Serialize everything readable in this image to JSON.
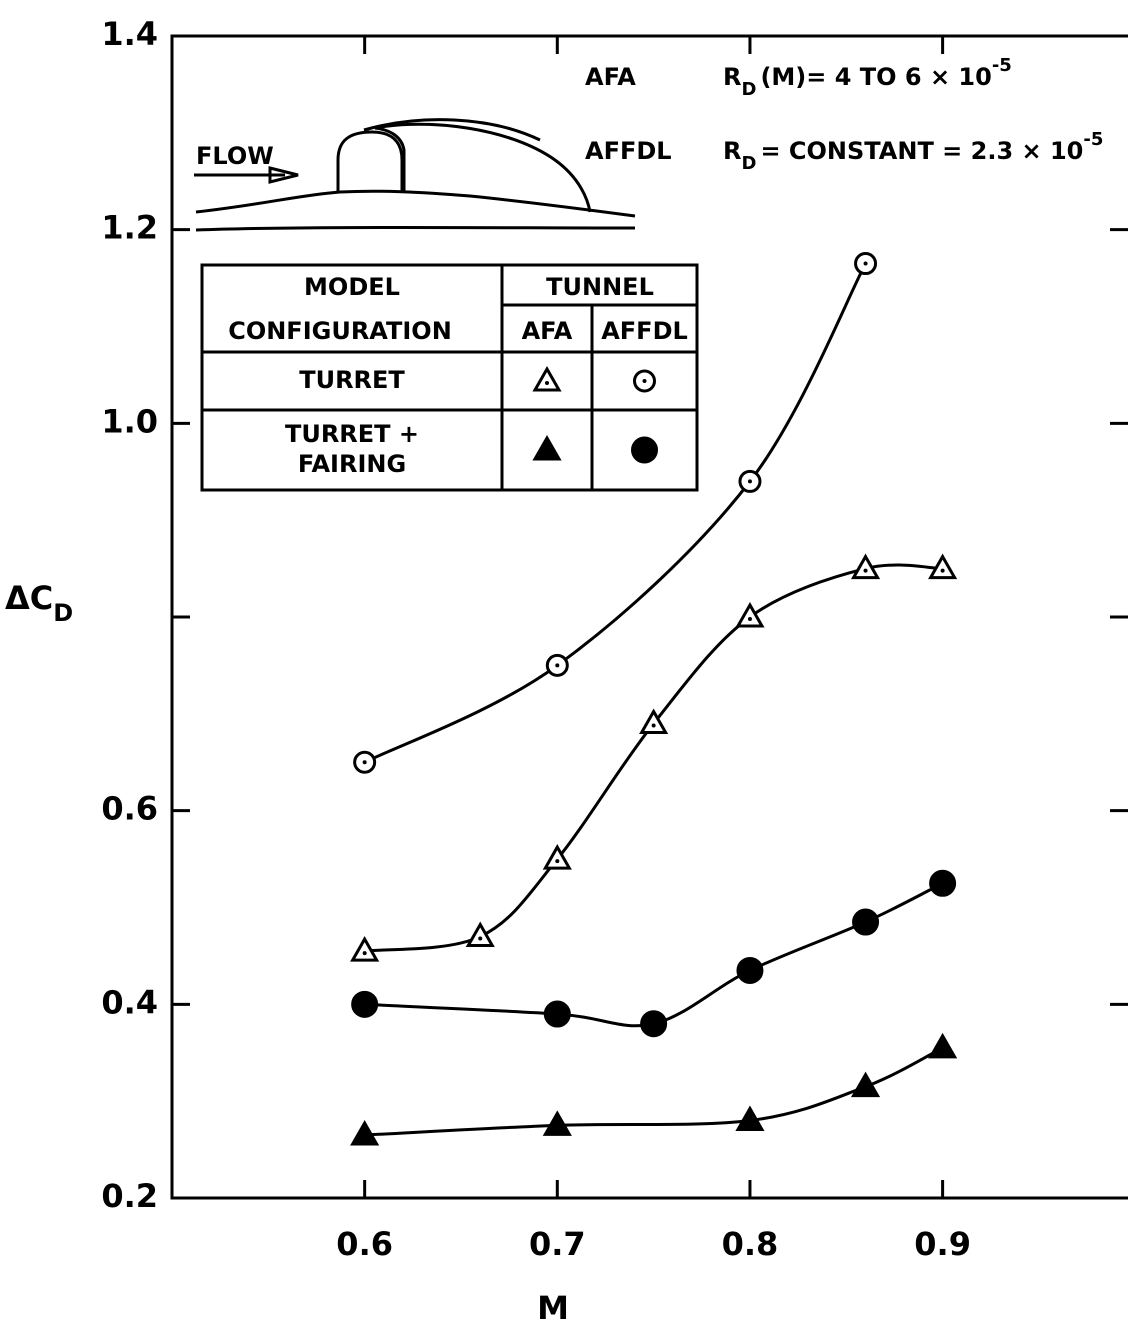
{
  "chart_data": {
    "type": "line",
    "xlabel": "M",
    "ylabel": "ΔC",
    "ylabel_sub": "D",
    "xlim": [
      0.5,
      0.99
    ],
    "ylim": [
      0.2,
      1.4
    ],
    "xticks": [
      0.6,
      0.7,
      0.8,
      0.9
    ],
    "yticks": [
      0.2,
      0.4,
      0.6,
      {
        "value": 1,
        "label": "1.0"
      },
      1.2,
      1.4
    ],
    "yminor": [
      0.8
    ],
    "annotations": [
      {
        "lines": [
          [
            "AFA"
          ],
          [
            "R",
            "D",
            "(M)= 4 TO 6 × 10",
            "-5"
          ]
        ]
      },
      {
        "lines": [
          [
            "AFFDL"
          ],
          [
            "R",
            "D",
            "= CONSTANT = 2.3 × 10",
            "-5"
          ]
        ]
      },
      {
        "lines": [
          [
            "FLOW"
          ]
        ]
      }
    ],
    "legend": {
      "header": [
        "MODEL",
        "CONFIGURATION"
      ],
      "group": "TUNNEL",
      "columns": [
        "AFA",
        "AFFDL"
      ],
      "rows": [
        [
          "TURRET"
        ],
        [
          "TURRET +",
          "FAIRING"
        ]
      ]
    },
    "series": [
      {
        "marker": "triangle",
        "filled": false,
        "color": "#000000",
        "x": [
          0.6,
          0.66,
          0.7,
          0.75,
          0.8,
          0.86,
          0.9
        ],
        "values": [
          0.455,
          0.47,
          0.55,
          0.69,
          0.8,
          0.85,
          0.85
        ]
      },
      {
        "marker": "circle",
        "filled": false,
        "color": "#000000",
        "x": [
          0.6,
          0.7,
          0.8,
          0.86
        ],
        "values": [
          0.65,
          0.75,
          0.94,
          1.165
        ]
      },
      {
        "marker": "triangle",
        "filled": true,
        "color": "#000000",
        "x": [
          0.6,
          0.7,
          0.8,
          0.86,
          0.9
        ],
        "values": [
          0.265,
          0.275,
          0.28,
          0.315,
          0.355
        ]
      },
      {
        "marker": "circle",
        "filled": true,
        "color": "#000000",
        "x": [
          0.6,
          0.7,
          0.75,
          0.8,
          0.86,
          0.9
        ],
        "values": [
          0.4,
          0.39,
          0.38,
          0.435,
          0.485,
          0.525
        ]
      }
    ]
  }
}
